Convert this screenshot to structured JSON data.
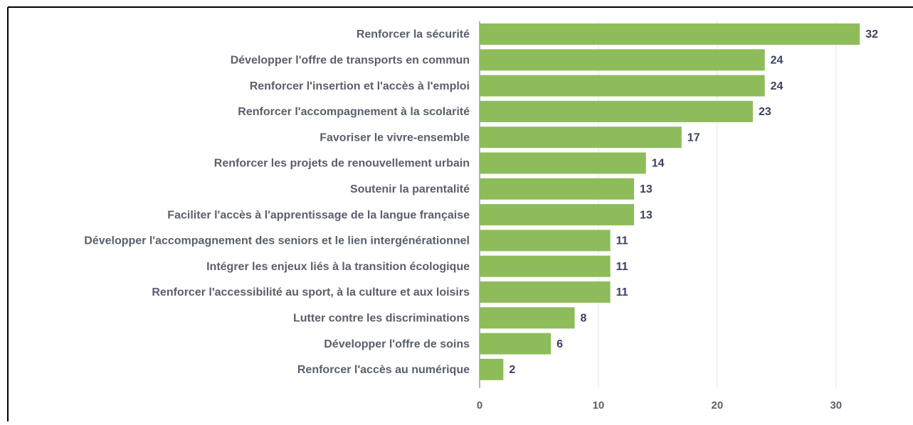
{
  "chart_data": {
    "type": "bar",
    "orientation": "horizontal",
    "categories": [
      "Renforcer la sécurité",
      "Développer l'offre de transports en commun",
      "Renforcer l'insertion et l'accès à l'emploi",
      "Renforcer l'accompagnement à la scolarité",
      "Favoriser le vivre-ensemble",
      "Renforcer les projets de renouvellement urbain",
      "Soutenir la parentalité",
      "Faciliter l'accès à l'apprentissage de la langue française",
      "Développer l'accompagnement des seniors et le lien intergénérationnel",
      "Intégrer les enjeux liés à la transition écologique",
      "Renforcer l'accessibilité au sport, à la culture et aux loisirs",
      "Lutter contre les discriminations",
      "Développer l'offre de soins",
      "Renforcer l'accès au numérique"
    ],
    "values": [
      32,
      24,
      24,
      23,
      17,
      14,
      13,
      13,
      11,
      11,
      11,
      8,
      6,
      2
    ],
    "color": "#8fbc5b",
    "xlim": [
      0,
      36.3
    ],
    "xticks": [
      0,
      10,
      20,
      30
    ],
    "grid": true
  }
}
